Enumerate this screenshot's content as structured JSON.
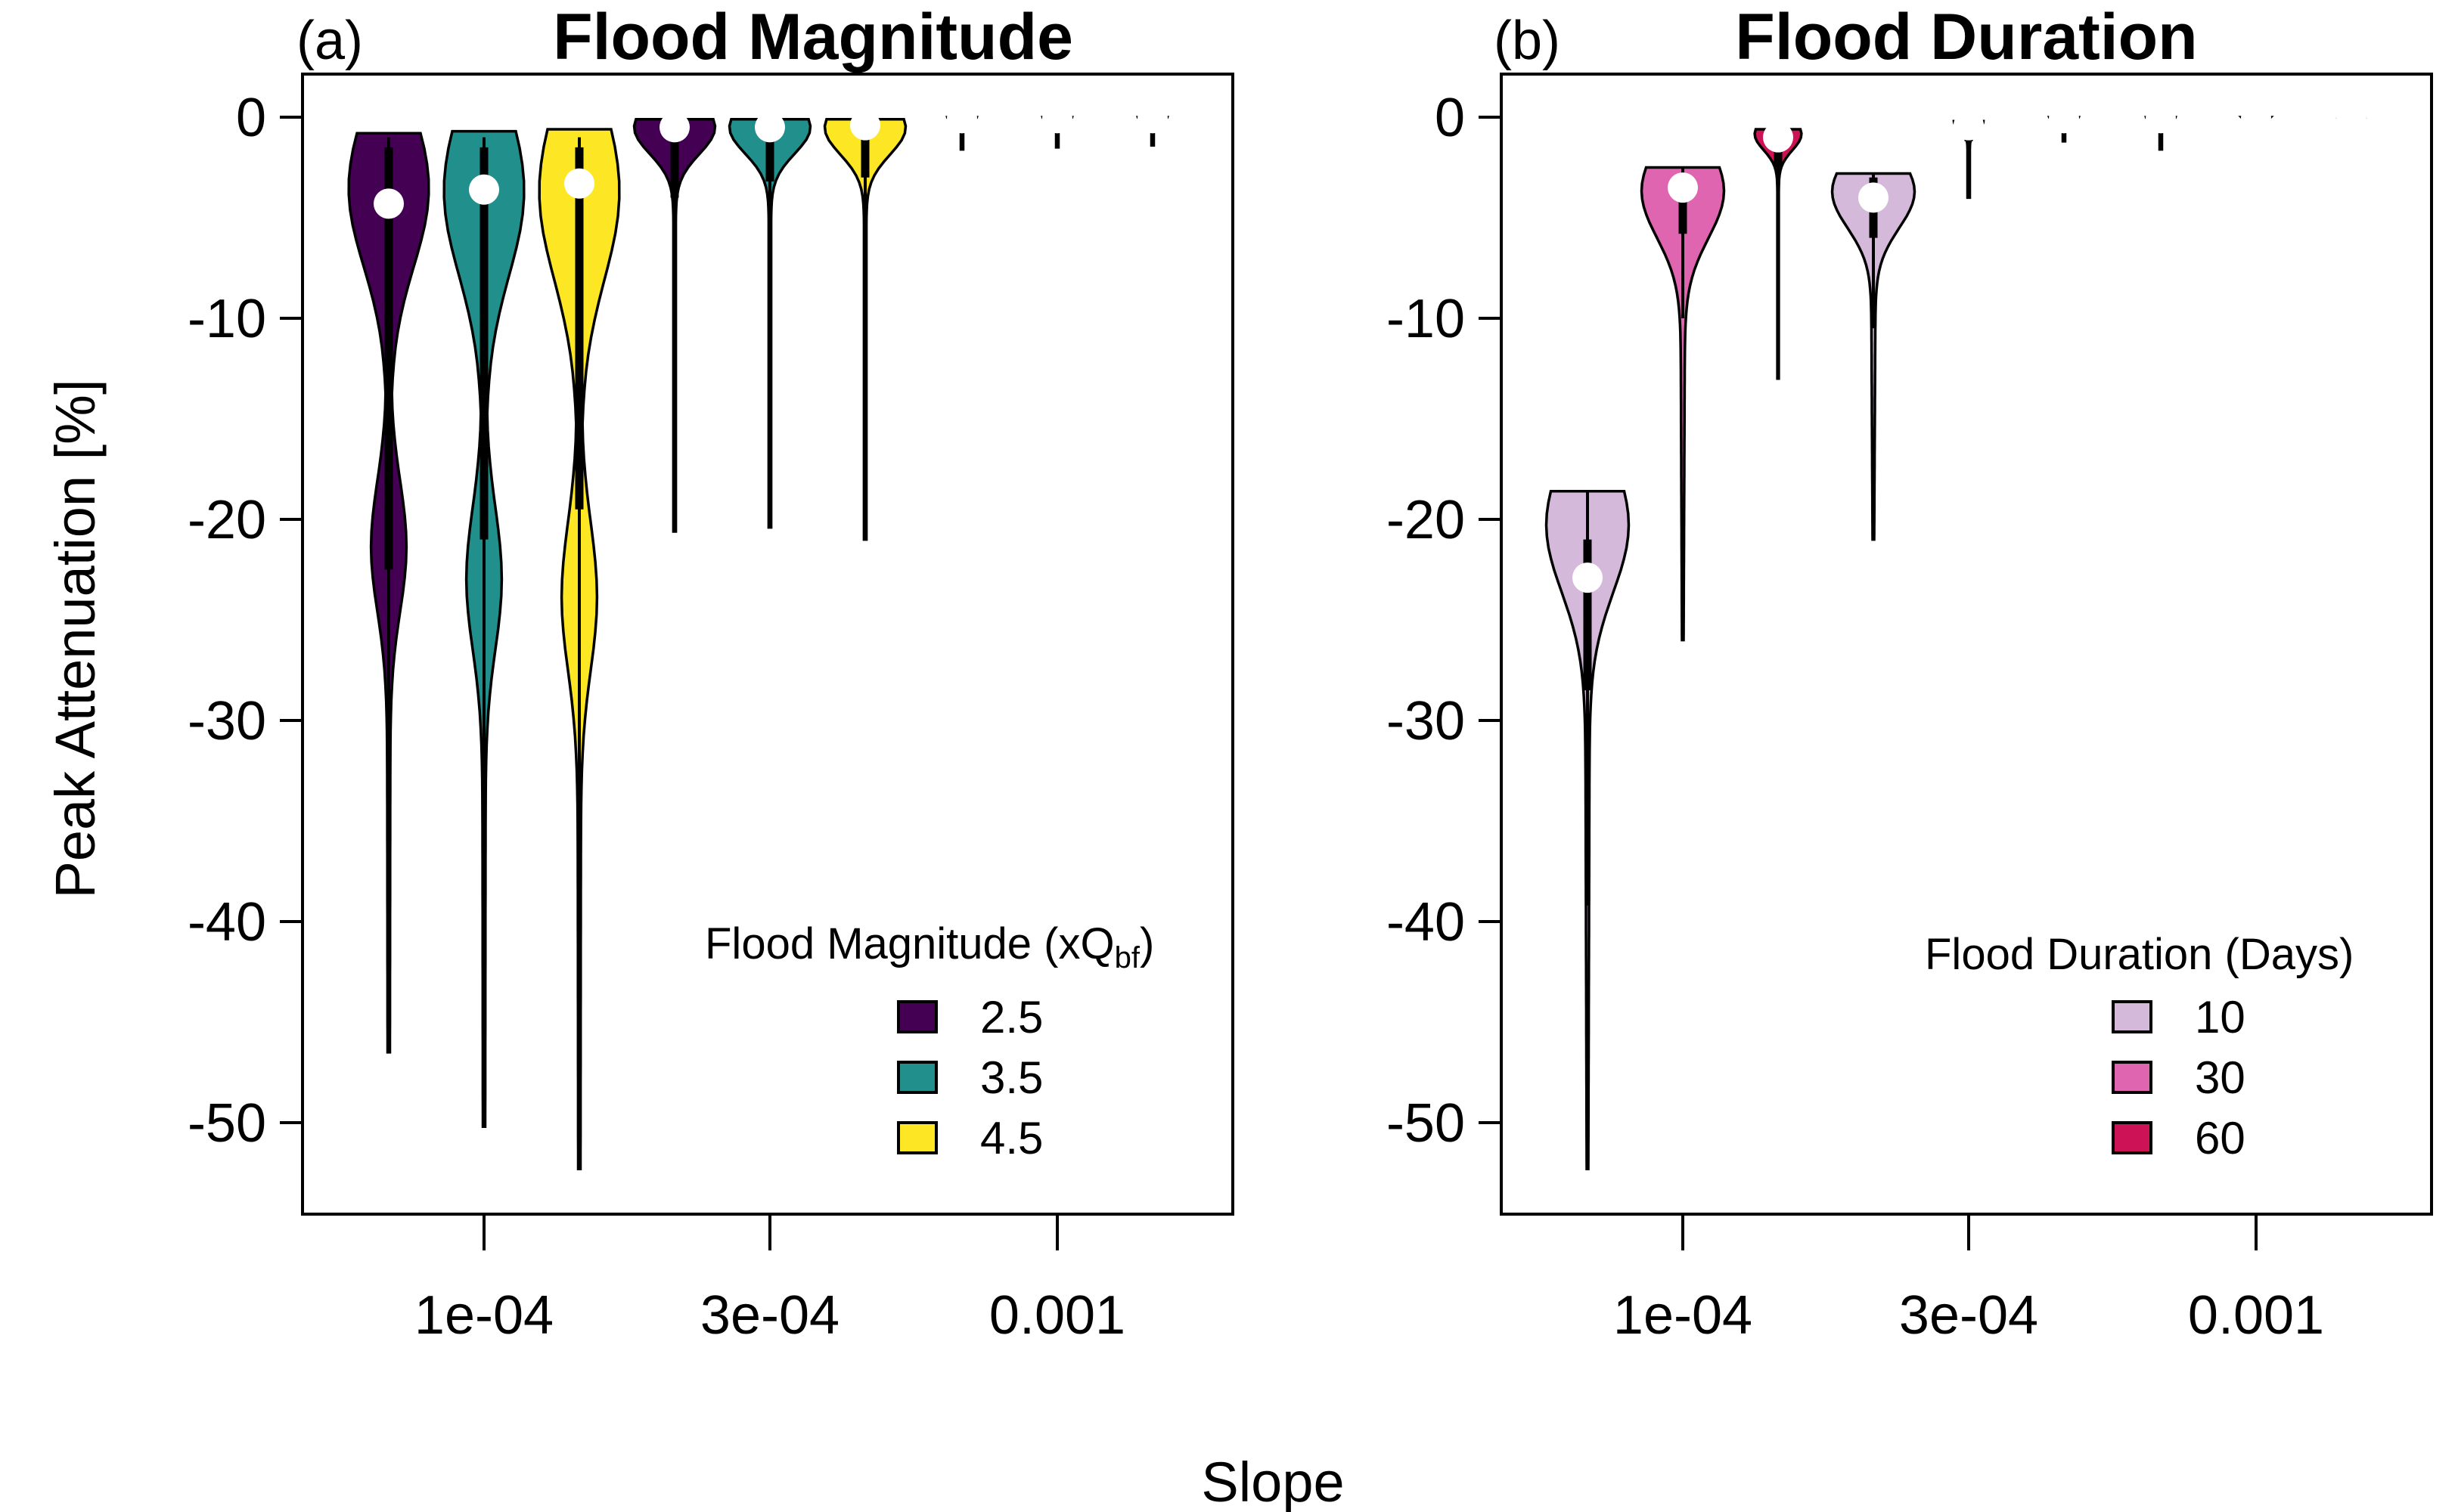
{
  "figure": {
    "shared_xlabel": "Slope",
    "shared_ylabel": "Peak Attenuation [%]"
  },
  "chart_data": [
    {
      "type": "violin",
      "panel_label": "(a)",
      "title": "Flood Magnitude",
      "xlabel": "Slope",
      "ylabel": "Peak Attenuation [%]",
      "x_ticks": [
        "1e-04",
        "3e-04",
        "0.001"
      ],
      "y_ticks": [
        0,
        -10,
        -20,
        -30,
        -40,
        -50
      ],
      "ylim": [
        -54.5,
        2.3
      ],
      "legend": {
        "title": "Flood Magnitude (xQ",
        "title_sub": "bf",
        "title_end": ")",
        "position": "bottom-right",
        "entries": [
          {
            "label": "2.5",
            "color": "#440154"
          },
          {
            "label": "3.5",
            "color": "#21908C"
          },
          {
            "label": "4.5",
            "color": "#FDE725"
          }
        ]
      },
      "groups": [
        {
          "slope": "1e-04",
          "series": "2.5",
          "color": "#440154",
          "max": -0.8,
          "min": -46.5,
          "median": -4.3,
          "q1": -22.5,
          "q3": -1.5,
          "whisker_low": -46.5,
          "whisker_high": -1.0,
          "shape": "bimodal_wide"
        },
        {
          "slope": "1e-04",
          "series": "3.5",
          "color": "#21908C",
          "max": -0.7,
          "min": -50.2,
          "median": -3.6,
          "q1": -21.0,
          "q3": -1.5,
          "whisker_low": -50.2,
          "whisker_high": -1.0,
          "shape": "bimodal_wide"
        },
        {
          "slope": "1e-04",
          "series": "4.5",
          "color": "#FDE725",
          "max": -0.6,
          "min": -52.3,
          "median": -3.3,
          "q1": -19.5,
          "q3": -1.5,
          "whisker_low": -52.3,
          "whisker_high": -1.0,
          "shape": "bimodal_wide"
        },
        {
          "slope": "3e-04",
          "series": "2.5",
          "color": "#440154",
          "max": -0.1,
          "min": -20.6,
          "median": -0.5,
          "q1": -4.0,
          "q3": -0.2,
          "whisker_low": -20.6,
          "whisker_high": -0.1,
          "shape": "top_heavy"
        },
        {
          "slope": "3e-04",
          "series": "3.5",
          "color": "#21908C",
          "max": -0.1,
          "min": -20.4,
          "median": -0.5,
          "q1": -3.2,
          "q3": -0.2,
          "whisker_low": -20.4,
          "whisker_high": -0.1,
          "shape": "top_heavy"
        },
        {
          "slope": "3e-04",
          "series": "4.5",
          "color": "#FDE725",
          "max": -0.1,
          "min": -21.0,
          "median": -0.4,
          "q1": -3.0,
          "q3": -0.2,
          "whisker_low": -21.0,
          "whisker_high": -0.1,
          "shape": "top_heavy"
        },
        {
          "slope": "0.001",
          "series": "2.5",
          "color": "#440154",
          "max": 0.0,
          "min": -1.6,
          "median": -0.05,
          "q1": -0.3,
          "q3": 0.0,
          "whisker_low": -1.6,
          "whisker_high": 0.0,
          "shape": "flat"
        },
        {
          "slope": "0.001",
          "series": "3.5",
          "color": "#21908C",
          "max": 0.0,
          "min": -1.5,
          "median": -0.05,
          "q1": -0.3,
          "q3": 0.0,
          "whisker_low": -1.5,
          "whisker_high": 0.0,
          "shape": "flat"
        },
        {
          "slope": "0.001",
          "series": "4.5",
          "color": "#FDE725",
          "max": 0.0,
          "min": -1.4,
          "median": -0.05,
          "q1": -0.3,
          "q3": 0.0,
          "whisker_low": -1.4,
          "whisker_high": 0.0,
          "shape": "flat"
        }
      ]
    },
    {
      "type": "violin",
      "panel_label": "(b)",
      "title": "Flood Duration",
      "xlabel": "Slope",
      "ylabel": "Peak Attenuation [%]",
      "x_ticks": [
        "1e-04",
        "3e-04",
        "0.001"
      ],
      "y_ticks": [
        0,
        -10,
        -20,
        -30,
        -40,
        -50
      ],
      "ylim": [
        -54.5,
        2.3
      ],
      "legend": {
        "title": "Flood Duration (Days)",
        "position": "bottom-right",
        "entries": [
          {
            "label": "10",
            "color": "#D4B9DA"
          },
          {
            "label": "30",
            "color": "#DF65B0"
          },
          {
            "label": "60",
            "color": "#CE1256"
          }
        ]
      },
      "groups": [
        {
          "slope": "1e-04",
          "series": "10",
          "color": "#D4B9DA",
          "max": -18.6,
          "min": -52.3,
          "median": -22.9,
          "q1": -28.5,
          "q3": -21.0,
          "whisker_low": -39.2,
          "whisker_high": -18.6,
          "shape": "top_heavy_wide"
        },
        {
          "slope": "1e-04",
          "series": "30",
          "color": "#DF65B0",
          "max": -2.5,
          "min": -26.0,
          "median": -3.5,
          "q1": -5.8,
          "q3": -2.8,
          "whisker_low": -10.0,
          "whisker_high": -2.5,
          "shape": "top_heavy_wide"
        },
        {
          "slope": "1e-04",
          "series": "60",
          "color": "#CE1256",
          "max": -0.6,
          "min": -13.0,
          "median": -1.0,
          "q1": -2.5,
          "q3": -0.7,
          "whisker_low": -4.5,
          "whisker_high": -0.6,
          "shape": "top_heavy"
        },
        {
          "slope": "3e-04",
          "series": "10",
          "color": "#D4B9DA",
          "max": -2.8,
          "min": -21.0,
          "median": -4.0,
          "q1": -6.0,
          "q3": -3.0,
          "whisker_low": -10.5,
          "whisker_high": -2.8,
          "shape": "top_heavy_wide"
        },
        {
          "slope": "3e-04",
          "series": "30",
          "color": "#DF65B0",
          "max": -0.2,
          "min": -4.0,
          "median": -0.4,
          "q1": -1.2,
          "q3": -0.3,
          "whisker_low": -2.0,
          "whisker_high": -0.2,
          "shape": "flat"
        },
        {
          "slope": "3e-04",
          "series": "60",
          "color": "#CE1256",
          "max": 0.0,
          "min": -1.2,
          "median": -0.05,
          "q1": -0.2,
          "q3": 0.0,
          "whisker_low": -1.2,
          "whisker_high": 0.0,
          "shape": "flat"
        },
        {
          "slope": "0.001",
          "series": "10",
          "color": "#D4B9DA",
          "max": 0.0,
          "min": -1.6,
          "median": -0.05,
          "q1": -0.3,
          "q3": 0.0,
          "whisker_low": -1.6,
          "whisker_high": 0.0,
          "shape": "flat"
        },
        {
          "slope": "0.001",
          "series": "30",
          "color": "#DF65B0",
          "max": 0.0,
          "min": -0.5,
          "median": -0.02,
          "q1": -0.1,
          "q3": 0.0,
          "whisker_low": -0.5,
          "whisker_high": 0.0,
          "shape": "flat"
        },
        {
          "slope": "0.001",
          "series": "60",
          "color": "#CE1256",
          "max": 0.0,
          "min": -0.3,
          "median": -0.01,
          "q1": -0.05,
          "q3": 0.0,
          "whisker_low": -0.3,
          "whisker_high": 0.0,
          "shape": "flat"
        }
      ]
    }
  ]
}
